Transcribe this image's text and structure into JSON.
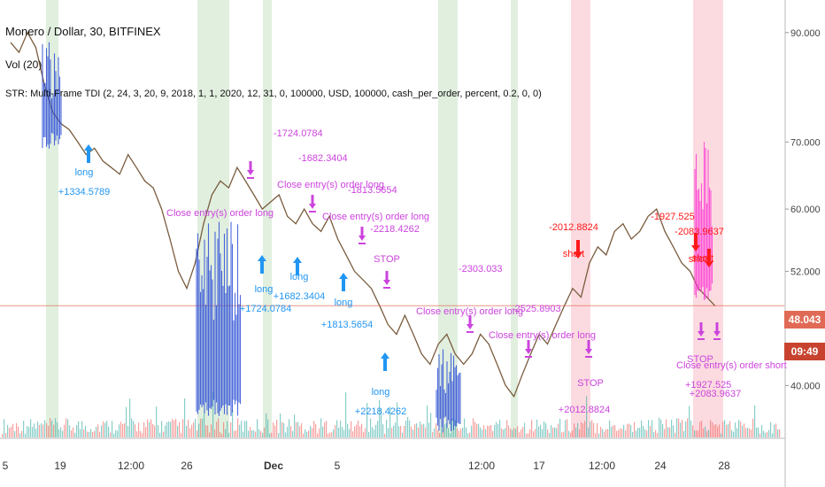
{
  "legend": {
    "symbol": "Monero / Dollar, 30, BITFINEX",
    "indicator": "Vol (20)",
    "strategy": "STR: Multi-Frame TDI (2, 24, 3, 20, 9, 2018, 1, 1, 2020, 12, 31, 0, 100000, USD, 100000, cash_per_order, percent, 0.2, 0, 0)"
  },
  "price_tags": {
    "last": "48.043",
    "countdown": "09:49"
  },
  "colors": {
    "up": "#26a69a",
    "down": "#ef5350",
    "price_line": "#7a5c3e",
    "long": "#2196f3",
    "short": "#ff1a1a",
    "exit": "#cc44dd",
    "green_zone": "#d7ead4",
    "pink_zone": "#fbd5db",
    "last_price": "#e06a55"
  },
  "chart_data": {
    "type": "line",
    "x_ticks": [
      "5",
      "19",
      "12:00",
      "26",
      "Dec",
      "5",
      "12:00",
      "17",
      "12:00",
      "24",
      "28"
    ],
    "y_ticks": [
      "90.000",
      "70.000",
      "60.000",
      "52.000",
      "40.000"
    ],
    "y_tick_values": [
      90,
      70,
      60,
      52,
      40
    ],
    "ylim": [
      35.5,
      97
    ],
    "y_scale": "log",
    "last_price": 48.043,
    "series": [
      {
        "values": [
          88,
          86,
          90,
          87,
          80,
          75,
          73,
          72,
          70,
          68,
          69,
          67,
          66,
          65,
          68,
          66,
          64,
          63,
          60,
          56,
          52,
          50,
          53,
          58,
          62,
          64,
          63,
          66,
          64,
          62,
          60,
          61,
          62,
          59,
          58,
          60,
          58,
          57,
          59,
          56,
          54,
          52,
          51,
          50,
          48,
          46,
          45,
          47,
          45,
          43,
          42,
          44,
          45,
          43,
          42,
          43,
          45,
          44,
          42,
          40,
          39,
          41,
          43,
          45,
          44,
          46,
          48,
          50,
          49,
          53,
          55,
          54,
          57,
          58,
          56,
          57,
          59,
          60,
          57,
          55,
          53,
          52,
          50,
          49,
          48
        ]
      }
    ],
    "signals": [
      {
        "kind": "entry-long",
        "text": "long",
        "pnl": "+1334.5789"
      },
      {
        "kind": "entry-long",
        "text": "long",
        "pnl": "+1724.0784"
      },
      {
        "kind": "entry-long",
        "text": "long",
        "pnl": "+1682.3404"
      },
      {
        "kind": "entry-long",
        "text": "long",
        "pnl": "+1813.5654"
      },
      {
        "kind": "entry-long",
        "text": "long",
        "pnl": "+2218.4262"
      },
      {
        "kind": "entry-short",
        "text": "short",
        "pnl": "-2012.8824"
      },
      {
        "kind": "entry-short",
        "text": "short",
        "pnl": "-1927.525"
      },
      {
        "kind": "entry-short",
        "text": "short",
        "pnl": "-2083.9637"
      },
      {
        "kind": "exit",
        "text": "Close entry(s) order long",
        "pnl": "-1682.3404"
      },
      {
        "kind": "exit",
        "text": "Close entry(s) order long",
        "pnl": "-1813.5654"
      },
      {
        "kind": "exit",
        "text": "Close entry(s) order long",
        "pnl": "-2303.033"
      },
      {
        "kind": "exit",
        "text": "Close entry(s) order long",
        "pnl": "-2525.8903"
      },
      {
        "kind": "exit",
        "text": "Close entry(s) order long",
        "pnl": "-1724.0784"
      },
      {
        "kind": "exit",
        "text": "Close entry(s) order short",
        "pnl": "+1927.525"
      },
      {
        "kind": "exit",
        "text": "STOP",
        "pnl": "-2218.4262"
      },
      {
        "kind": "exit",
        "text": "STOP",
        "pnl": "+2012.8824"
      },
      {
        "kind": "exit",
        "text": "STOP",
        "pnl": "+2083.9637"
      }
    ]
  }
}
